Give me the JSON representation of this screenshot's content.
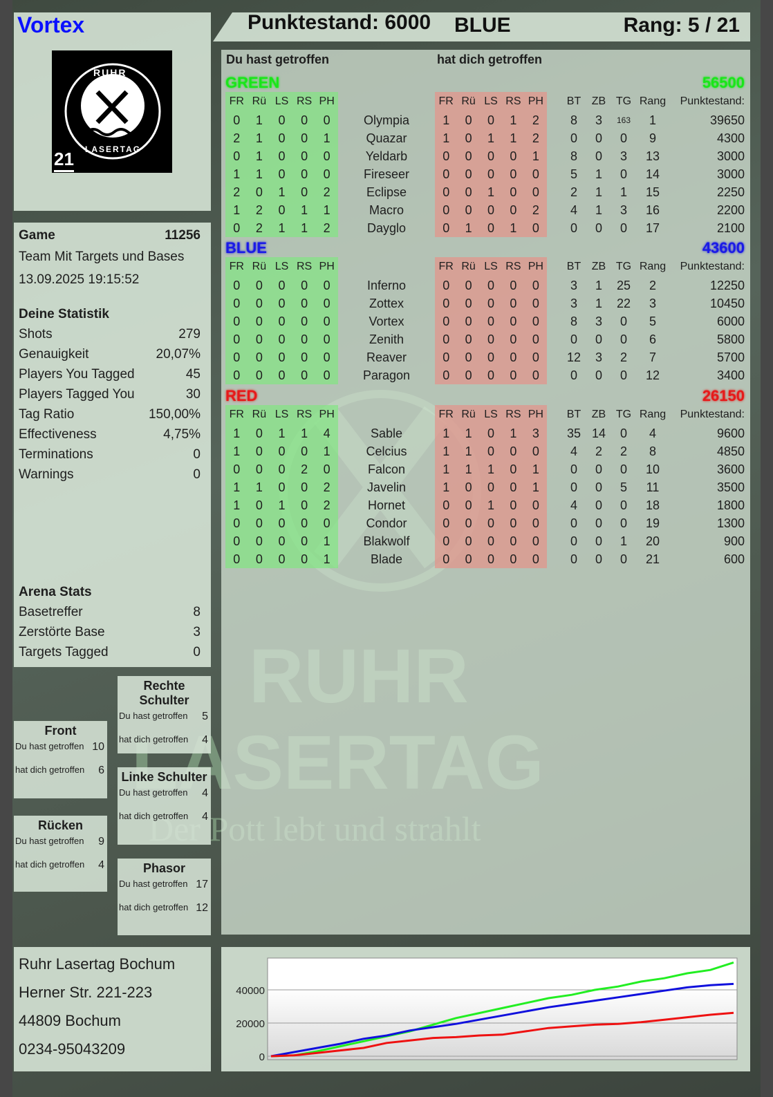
{
  "player": {
    "name": "Vortex",
    "name_color": "#0a10ff"
  },
  "logo": {
    "text_top": "RUHR",
    "text_bottom": "LASERTAG",
    "badge": "21"
  },
  "header": {
    "score_label": "Punktestand: 6000",
    "team": "BLUE",
    "rank_label": "Rang: 5 / 21"
  },
  "main": {
    "you_hit_label": "Du hast getroffen",
    "hit_you_label": "hat dich getroffen",
    "columns": {
      "zones": [
        "FR",
        "Rü",
        "LS",
        "RS",
        "PH"
      ],
      "bt": "BT",
      "zb": "ZB",
      "tg": "TG",
      "rang": "Rang",
      "pts": "Punktestand:"
    },
    "teams": [
      {
        "name": "GREEN",
        "score": "56500",
        "color": "#19e619",
        "players": [
          {
            "name": "Olympia",
            "you_hit": [
              "0",
              "1",
              "0",
              "0",
              "0"
            ],
            "hit_you": [
              "1",
              "0",
              "0",
              "1",
              "2"
            ],
            "bt": "8",
            "zb": "3",
            "tg": "163",
            "rang": "1",
            "pts": "39650"
          },
          {
            "name": "Quazar",
            "you_hit": [
              "2",
              "1",
              "0",
              "0",
              "1"
            ],
            "hit_you": [
              "1",
              "0",
              "1",
              "1",
              "2"
            ],
            "bt": "0",
            "zb": "0",
            "tg": "0",
            "rang": "9",
            "pts": "4300"
          },
          {
            "name": "Yeldarb",
            "you_hit": [
              "0",
              "1",
              "0",
              "0",
              "0"
            ],
            "hit_you": [
              "0",
              "0",
              "0",
              "0",
              "1"
            ],
            "bt": "8",
            "zb": "0",
            "tg": "3",
            "rang": "13",
            "pts": "3000"
          },
          {
            "name": "Fireseer",
            "you_hit": [
              "1",
              "1",
              "0",
              "0",
              "0"
            ],
            "hit_you": [
              "0",
              "0",
              "0",
              "0",
              "0"
            ],
            "bt": "5",
            "zb": "1",
            "tg": "0",
            "rang": "14",
            "pts": "3000"
          },
          {
            "name": "Eclipse",
            "you_hit": [
              "2",
              "0",
              "1",
              "0",
              "2"
            ],
            "hit_you": [
              "0",
              "0",
              "1",
              "0",
              "0"
            ],
            "bt": "2",
            "zb": "1",
            "tg": "1",
            "rang": "15",
            "pts": "2250"
          },
          {
            "name": "Macro",
            "you_hit": [
              "1",
              "2",
              "0",
              "1",
              "1"
            ],
            "hit_you": [
              "0",
              "0",
              "0",
              "0",
              "2"
            ],
            "bt": "4",
            "zb": "1",
            "tg": "3",
            "rang": "16",
            "pts": "2200"
          },
          {
            "name": "Dayglo",
            "you_hit": [
              "0",
              "2",
              "1",
              "1",
              "2"
            ],
            "hit_you": [
              "0",
              "1",
              "0",
              "1",
              "0"
            ],
            "bt": "0",
            "zb": "0",
            "tg": "0",
            "rang": "17",
            "pts": "2100"
          }
        ]
      },
      {
        "name": "BLUE",
        "score": "43600",
        "color": "#1a1ae6",
        "players": [
          {
            "name": "Inferno",
            "you_hit": [
              "0",
              "0",
              "0",
              "0",
              "0"
            ],
            "hit_you": [
              "0",
              "0",
              "0",
              "0",
              "0"
            ],
            "bt": "3",
            "zb": "1",
            "tg": "25",
            "rang": "2",
            "pts": "12250"
          },
          {
            "name": "Zottex",
            "you_hit": [
              "0",
              "0",
              "0",
              "0",
              "0"
            ],
            "hit_you": [
              "0",
              "0",
              "0",
              "0",
              "0"
            ],
            "bt": "3",
            "zb": "1",
            "tg": "22",
            "rang": "3",
            "pts": "10450"
          },
          {
            "name": "Vortex",
            "you_hit": [
              "0",
              "0",
              "0",
              "0",
              "0"
            ],
            "hit_you": [
              "0",
              "0",
              "0",
              "0",
              "0"
            ],
            "bt": "8",
            "zb": "3",
            "tg": "0",
            "rang": "5",
            "pts": "6000"
          },
          {
            "name": "Zenith",
            "you_hit": [
              "0",
              "0",
              "0",
              "0",
              "0"
            ],
            "hit_you": [
              "0",
              "0",
              "0",
              "0",
              "0"
            ],
            "bt": "0",
            "zb": "0",
            "tg": "0",
            "rang": "6",
            "pts": "5800"
          },
          {
            "name": "Reaver",
            "you_hit": [
              "0",
              "0",
              "0",
              "0",
              "0"
            ],
            "hit_you": [
              "0",
              "0",
              "0",
              "0",
              "0"
            ],
            "bt": "12",
            "zb": "3",
            "tg": "2",
            "rang": "7",
            "pts": "5700"
          },
          {
            "name": "Paragon",
            "you_hit": [
              "0",
              "0",
              "0",
              "0",
              "0"
            ],
            "hit_you": [
              "0",
              "0",
              "0",
              "0",
              "0"
            ],
            "bt": "0",
            "zb": "0",
            "tg": "0",
            "rang": "12",
            "pts": "3400"
          }
        ]
      },
      {
        "name": "RED",
        "score": "26150",
        "color": "#e61a1a",
        "players": [
          {
            "name": "Sable",
            "you_hit": [
              "1",
              "0",
              "1",
              "1",
              "4"
            ],
            "hit_you": [
              "1",
              "1",
              "0",
              "1",
              "3"
            ],
            "bt": "35",
            "zb": "14",
            "tg": "0",
            "rang": "4",
            "pts": "9600"
          },
          {
            "name": "Celcius",
            "you_hit": [
              "1",
              "0",
              "0",
              "0",
              "1"
            ],
            "hit_you": [
              "1",
              "1",
              "0",
              "0",
              "0"
            ],
            "bt": "4",
            "zb": "2",
            "tg": "2",
            "rang": "8",
            "pts": "4850"
          },
          {
            "name": "Falcon",
            "you_hit": [
              "0",
              "0",
              "0",
              "2",
              "0"
            ],
            "hit_you": [
              "1",
              "1",
              "1",
              "0",
              "1"
            ],
            "bt": "0",
            "zb": "0",
            "tg": "0",
            "rang": "10",
            "pts": "3600"
          },
          {
            "name": "Javelin",
            "you_hit": [
              "1",
              "1",
              "0",
              "0",
              "2"
            ],
            "hit_you": [
              "1",
              "0",
              "0",
              "0",
              "1"
            ],
            "bt": "0",
            "zb": "0",
            "tg": "5",
            "rang": "11",
            "pts": "3500"
          },
          {
            "name": "Hornet",
            "you_hit": [
              "1",
              "0",
              "1",
              "0",
              "2"
            ],
            "hit_you": [
              "0",
              "0",
              "1",
              "0",
              "0"
            ],
            "bt": "4",
            "zb": "0",
            "tg": "0",
            "rang": "18",
            "pts": "1800"
          },
          {
            "name": "Condor",
            "you_hit": [
              "0",
              "0",
              "0",
              "0",
              "0"
            ],
            "hit_you": [
              "0",
              "0",
              "0",
              "0",
              "0"
            ],
            "bt": "0",
            "zb": "0",
            "tg": "0",
            "rang": "19",
            "pts": "1300"
          },
          {
            "name": "Blakwolf",
            "you_hit": [
              "0",
              "0",
              "0",
              "0",
              "1"
            ],
            "hit_you": [
              "0",
              "0",
              "0",
              "0",
              "0"
            ],
            "bt": "0",
            "zb": "0",
            "tg": "1",
            "rang": "20",
            "pts": "900"
          },
          {
            "name": "Blade",
            "you_hit": [
              "0",
              "0",
              "0",
              "0",
              "1"
            ],
            "hit_you": [
              "0",
              "0",
              "0",
              "0",
              "0"
            ],
            "bt": "0",
            "zb": "0",
            "tg": "0",
            "rang": "21",
            "pts": "600"
          }
        ]
      }
    ]
  },
  "game": {
    "label": "Game",
    "id": "11256",
    "mode": "Team Mit Targets und Bases",
    "datetime": "13.09.2025 19:15:52"
  },
  "stats": {
    "title": "Deine Statistik",
    "items": [
      {
        "label": "Shots",
        "value": "279"
      },
      {
        "label": "Genauigkeit",
        "value": "20,07%"
      },
      {
        "label": "Players You Tagged",
        "value": "45"
      },
      {
        "label": "Players Tagged You",
        "value": "30"
      },
      {
        "label": "Tag Ratio",
        "value": "150,00%"
      },
      {
        "label": "Effectiveness",
        "value": "4,75%"
      },
      {
        "label": "Terminations",
        "value": "0"
      },
      {
        "label": "Warnings",
        "value": "0"
      }
    ]
  },
  "arena": {
    "title": "Arena Stats",
    "items": [
      {
        "label": "Basetreffer",
        "value": "8"
      },
      {
        "label": "Zerstörte Base",
        "value": "3"
      },
      {
        "label": "Targets Tagged",
        "value": "0"
      }
    ]
  },
  "zones": {
    "you_hit_label": "Du hast getroffen",
    "hit_you_label": "hat dich getroffen",
    "front": {
      "title": "Front",
      "you_hit": "10",
      "hit_you": "6"
    },
    "back": {
      "title": "Rücken",
      "you_hit": "9",
      "hit_you": "4"
    },
    "right": {
      "title": "Rechte Schulter",
      "you_hit": "5",
      "hit_you": "4"
    },
    "left": {
      "title": "Linke Schulter",
      "you_hit": "4",
      "hit_you": "4"
    },
    "phasor": {
      "title": "Phasor",
      "you_hit": "17",
      "hit_you": "12"
    }
  },
  "address": {
    "lines": [
      "Ruhr Lasertag Bochum",
      "Herner Str. 221-223",
      "44809 Bochum",
      "0234-95043209"
    ]
  },
  "watermark": {
    "line1": "RUHR",
    "line2": "LASERTAG",
    "slogan": "Der Pott lebt und strahlt"
  },
  "chart_data": {
    "type": "line",
    "ylim": [
      0,
      58000
    ],
    "yticks": [
      "0",
      "20000",
      "40000"
    ],
    "grid": true,
    "series": [
      {
        "color": "#22ee22",
        "values": [
          0,
          500,
          3000,
          6000,
          9000,
          12000,
          15000,
          19000,
          23000,
          26000,
          29000,
          32000,
          35000,
          37000,
          40000,
          42000,
          45000,
          47000,
          50000,
          52000,
          56500
        ]
      },
      {
        "color": "#1010dd",
        "values": [
          0,
          2500,
          5000,
          7500,
          10500,
          12500,
          15500,
          17500,
          19500,
          22000,
          24500,
          27000,
          29500,
          31500,
          33500,
          35500,
          37500,
          39500,
          41500,
          42800,
          43600
        ]
      },
      {
        "color": "#ee1111",
        "values": [
          0,
          500,
          2000,
          3500,
          5000,
          8000,
          9500,
          11000,
          11500,
          12500,
          13000,
          15000,
          17000,
          18000,
          19000,
          19500,
          20500,
          22000,
          23500,
          25000,
          26150
        ]
      }
    ]
  }
}
